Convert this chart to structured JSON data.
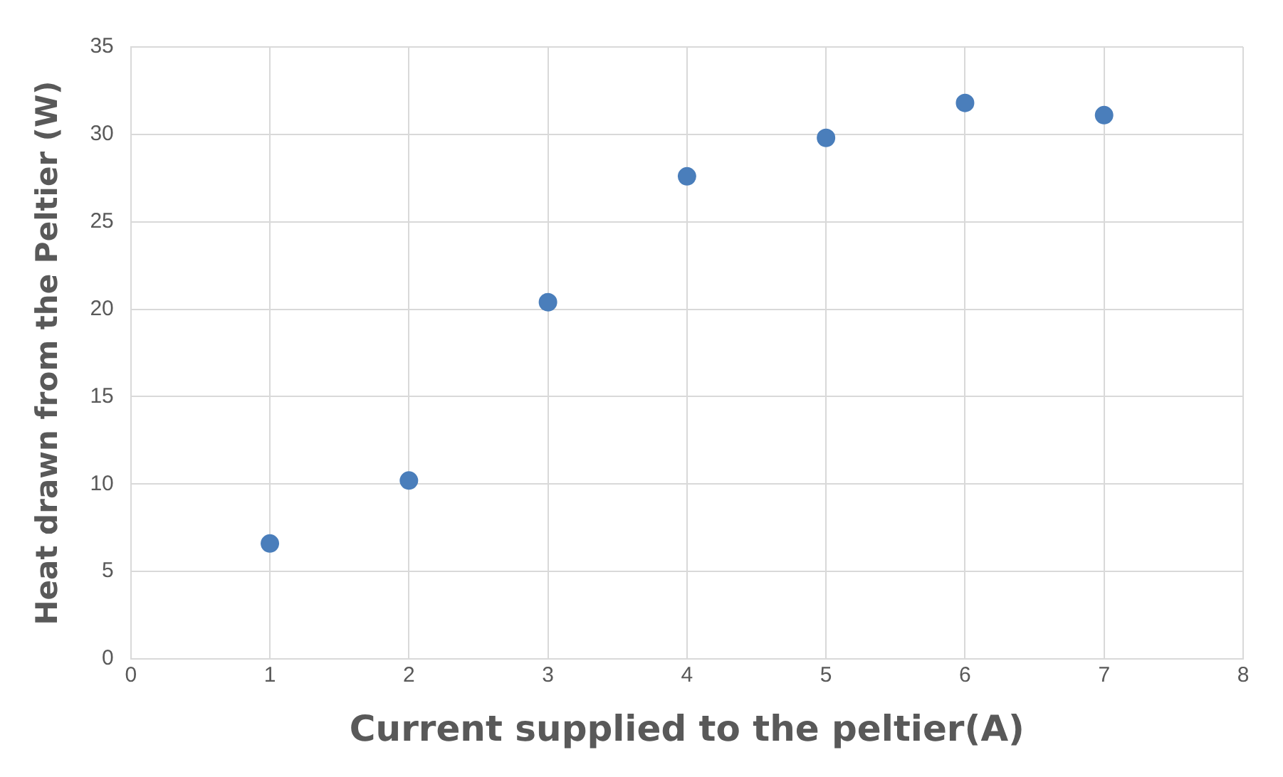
{
  "chart_data": {
    "type": "scatter",
    "xlabel": "Current supplied to the peltier(A)",
    "ylabel": "Heat drawn from the Peltier (W)",
    "x": [
      1,
      2,
      3,
      4,
      5,
      6,
      7
    ],
    "series": [
      {
        "color": "#4a7ebb",
        "values": [
          6.6,
          10.2,
          20.4,
          27.6,
          29.8,
          31.8,
          31.1
        ]
      }
    ],
    "xlim": [
      0,
      8
    ],
    "xticks": [
      0,
      1,
      2,
      3,
      4,
      5,
      6,
      7,
      8
    ],
    "ylim": [
      0,
      35
    ],
    "yticks": [
      0,
      5,
      10,
      15,
      20,
      25,
      30,
      35
    ],
    "grid": true,
    "legend": false,
    "marker": "circle"
  }
}
